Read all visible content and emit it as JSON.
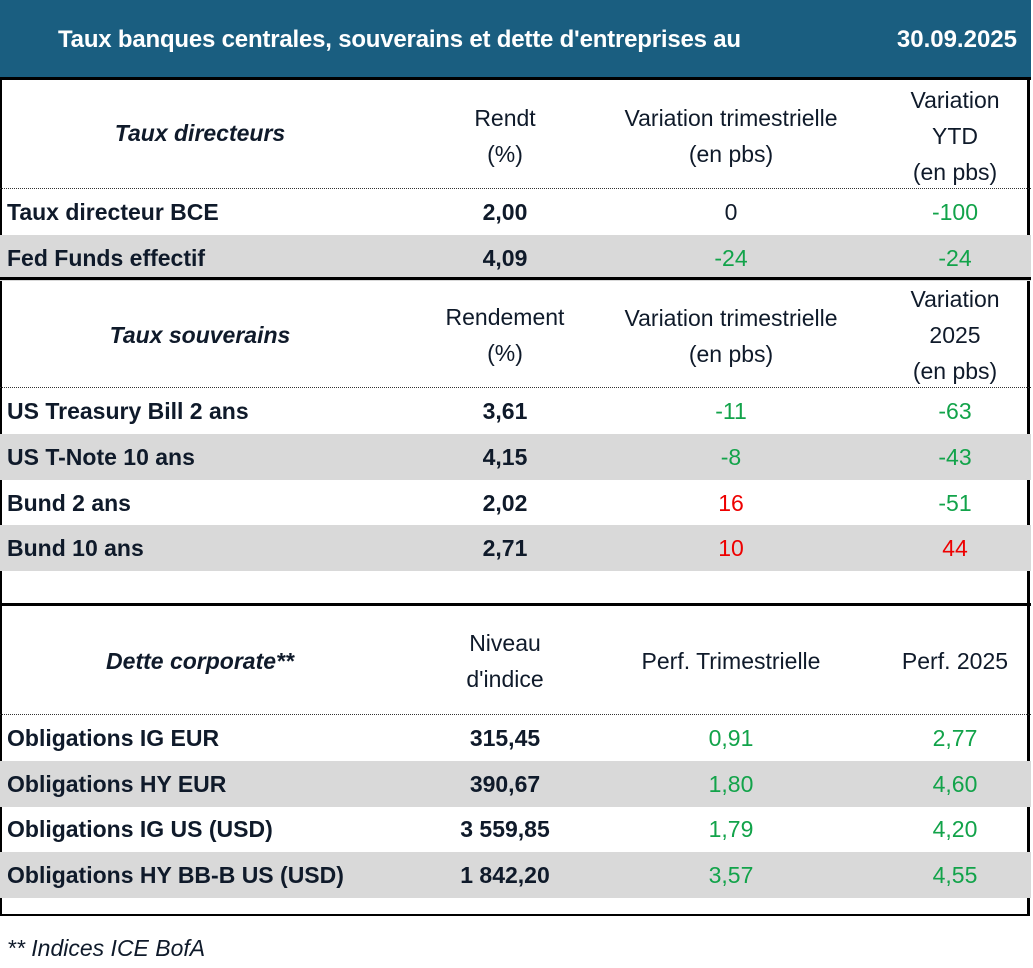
{
  "header": {
    "title": "Taux banques centrales, souverains et dette d'entreprises au",
    "date": "30.09.2025"
  },
  "sections": [
    {
      "label": "Taux directeurs",
      "col1": [
        "Rendt",
        "(%)"
      ],
      "col2": [
        "Variation trimestrielle",
        "(en pbs)"
      ],
      "col3": [
        "Variation",
        "YTD",
        "(en pbs)"
      ],
      "rows": [
        {
          "name": "Taux directeur BCE",
          "v1": "2,00",
          "v2": "0",
          "v3": "-100",
          "c2": "black",
          "c3": "green"
        },
        {
          "name": "Fed Funds effectif",
          "v1": "4,09",
          "v2": "-24",
          "v3": "-24",
          "c2": "green",
          "c3": "green"
        }
      ]
    },
    {
      "label": "Taux souverains",
      "col1": [
        "Rendement",
        "(%)"
      ],
      "col2": [
        "Variation trimestrielle",
        "(en pbs)"
      ],
      "col3": [
        "Variation",
        "2025",
        "(en pbs)"
      ],
      "rows": [
        {
          "name": "US Treasury Bill 2 ans",
          "v1": "3,61",
          "v2": "-11",
          "v3": "-63",
          "c2": "green",
          "c3": "green"
        },
        {
          "name": "US T-Note 10 ans",
          "v1": "4,15",
          "v2": "-8",
          "v3": "-43",
          "c2": "green",
          "c3": "green"
        },
        {
          "name": "Bund 2 ans",
          "v1": "2,02",
          "v2": "16",
          "v3": "-51",
          "c2": "red",
          "c3": "green"
        },
        {
          "name": "Bund 10 ans",
          "v1": "2,71",
          "v2": "10",
          "v3": "44",
          "c2": "red",
          "c3": "red"
        }
      ]
    },
    {
      "label": "Dette corporate**",
      "col1": [
        "Niveau",
        "d'indice"
      ],
      "col2": [
        "Perf. Trimestrielle"
      ],
      "col3": [
        "Perf. 2025"
      ],
      "rows": [
        {
          "name": "Obligations IG EUR",
          "v1": "315,45",
          "v2": "0,91",
          "v3": "2,77",
          "c2": "green",
          "c3": "green"
        },
        {
          "name": "Obligations HY EUR",
          "v1": "390,67",
          "v2": "1,80",
          "v3": "4,60",
          "c2": "green",
          "c3": "green"
        },
        {
          "name": "Obligations IG US (USD)",
          "v1": "3 559,85",
          "v2": "1,79",
          "v3": "4,20",
          "c2": "green",
          "c3": "green"
        },
        {
          "name": "Obligations HY BB-B US (USD)",
          "v1": "1 842,20",
          "v2": "3,57",
          "v3": "4,55",
          "c2": "green",
          "c3": "green"
        }
      ]
    }
  ],
  "footnote": "** Indices ICE BofA",
  "colors": {
    "header_bg": "#1a5e80",
    "green": "#12a34a",
    "red": "#ee0000",
    "shade": "#d9d9d9"
  }
}
